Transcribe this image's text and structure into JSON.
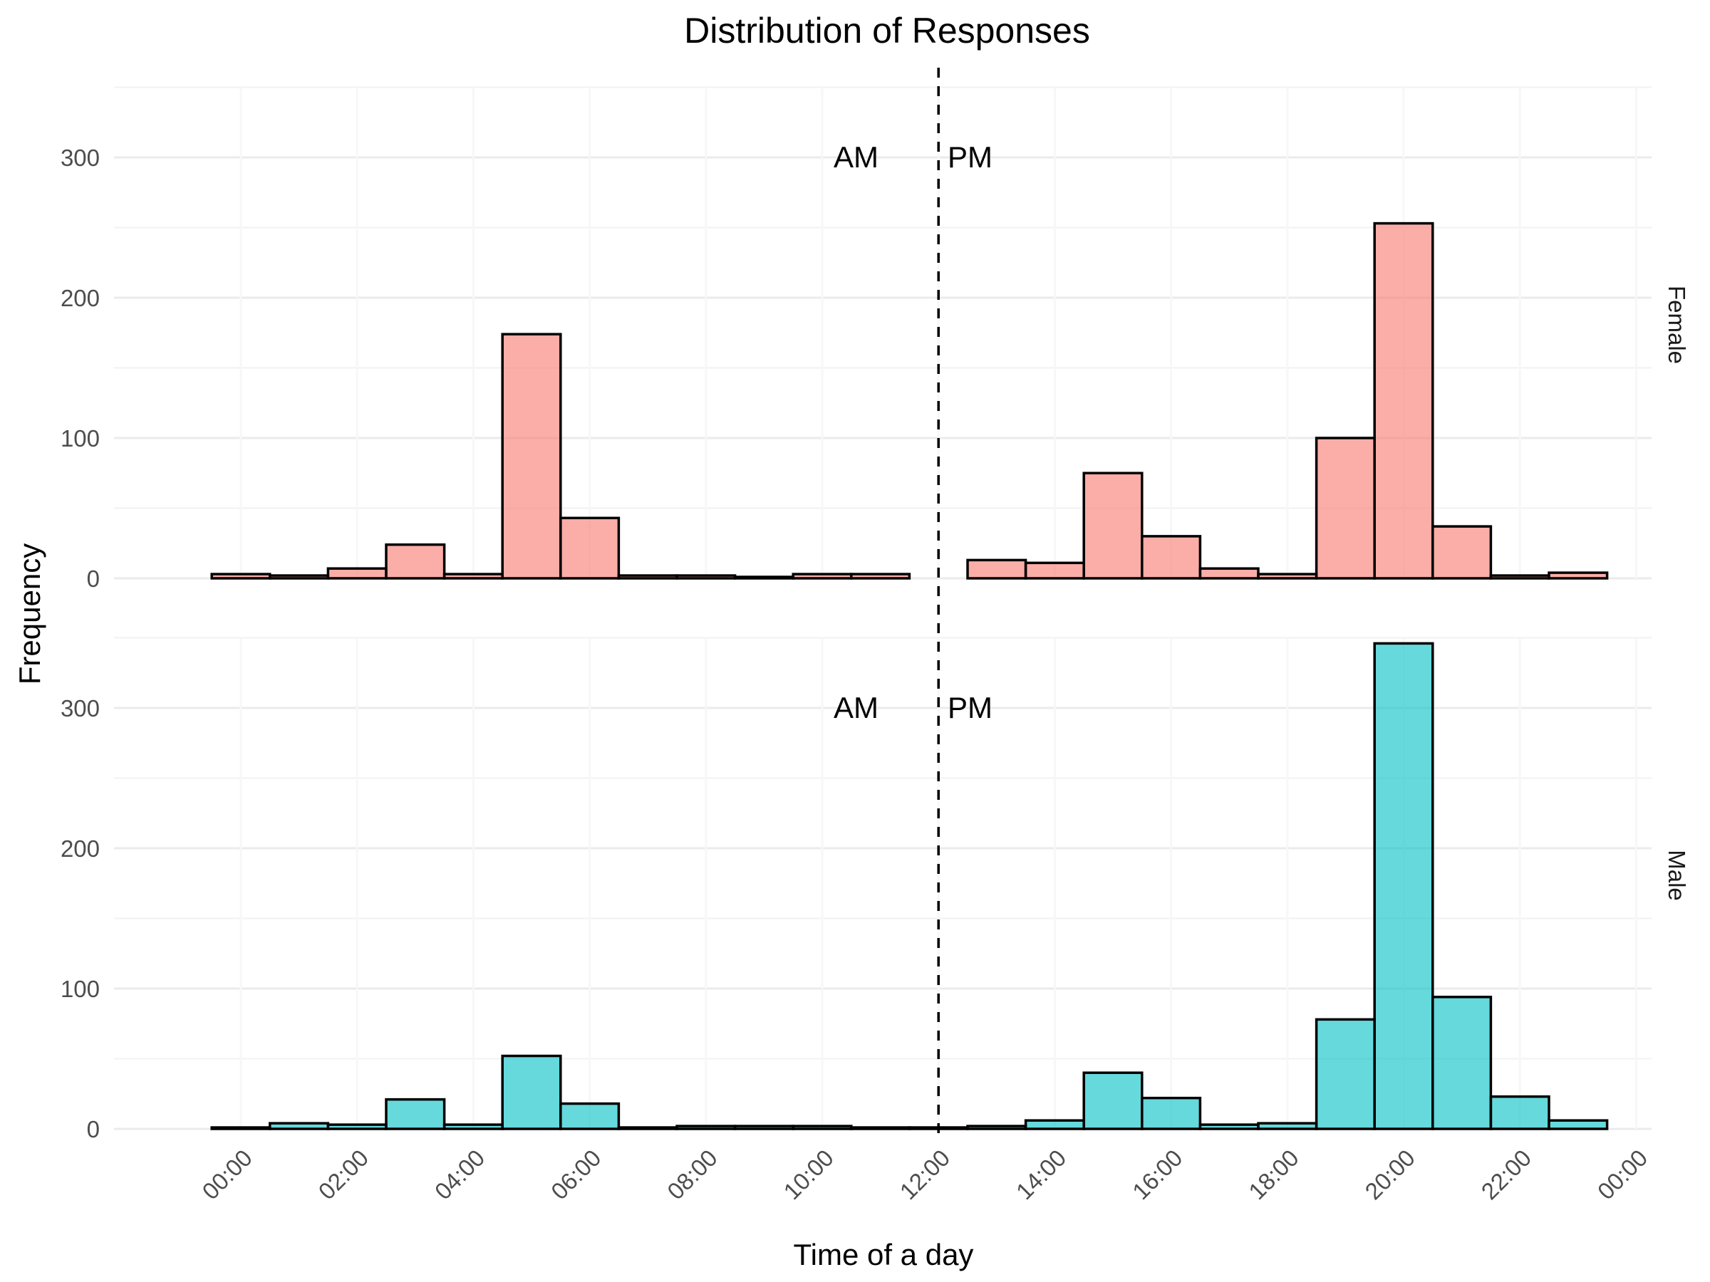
{
  "chart_data": {
    "type": "bar",
    "title": "Distribution of Responses",
    "xlabel": "Time of a day",
    "ylabel": "Frequency",
    "x_tick_labels": [
      "00:00",
      "02:00",
      "04:00",
      "06:00",
      "08:00",
      "10:00",
      "12:00",
      "14:00",
      "16:00",
      "18:00",
      "20:00",
      "22:00",
      "00:00"
    ],
    "y_tick_labels": [
      "0",
      "100",
      "200",
      "300"
    ],
    "ylim": [
      0,
      350
    ],
    "bin_width_hours": 1,
    "bin_centers_hours": [
      0,
      1,
      2,
      3,
      4,
      5,
      6,
      7,
      8,
      9,
      10,
      11,
      12,
      13,
      14,
      15,
      16,
      17,
      18,
      19,
      20,
      21,
      22,
      23
    ],
    "reference_line_hours": 12,
    "annotations": {
      "am": "AM",
      "pm": "PM",
      "y": 300
    },
    "grid": true,
    "facets": [
      {
        "strip": "Female",
        "color": "#F8766D",
        "values": [
          3,
          2,
          7,
          24,
          3,
          174,
          43,
          2,
          2,
          1,
          3,
          3,
          0,
          13,
          11,
          75,
          30,
          7,
          3,
          100,
          253,
          37,
          2,
          4
        ]
      },
      {
        "strip": "Male",
        "color": "#00BFC4",
        "values": [
          1,
          4,
          3,
          21,
          3,
          52,
          18,
          1,
          2,
          2,
          2,
          1,
          1,
          2,
          6,
          40,
          22,
          3,
          4,
          78,
          346,
          94,
          23,
          6
        ]
      }
    ]
  }
}
